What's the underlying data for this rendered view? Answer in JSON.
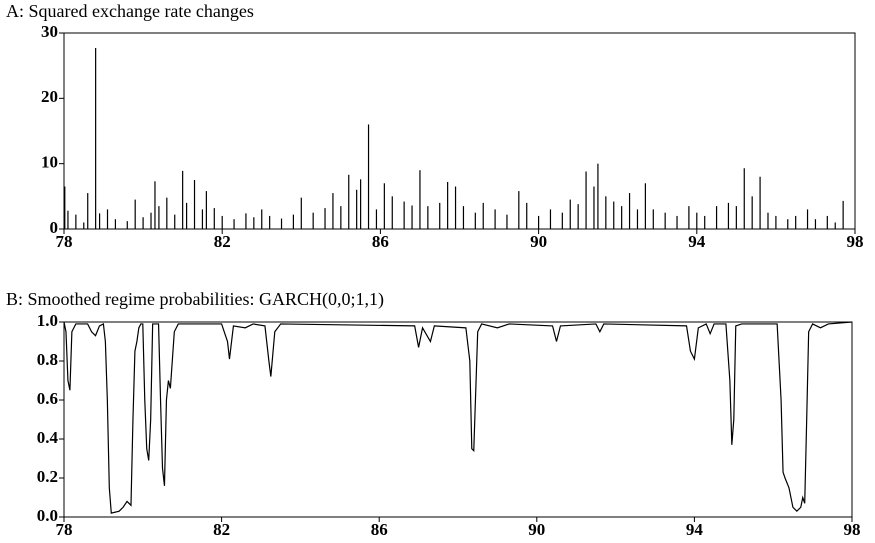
{
  "chart_data": [
    {
      "type": "spike",
      "title": "A: Squared exchange rate changes",
      "color": "#000000",
      "x": [
        78.02,
        78.1,
        78.3,
        78.5,
        78.6,
        78.8,
        78.9,
        79.1,
        79.3,
        79.6,
        79.8,
        80.0,
        80.2,
        80.3,
        80.4,
        80.6,
        80.8,
        81.0,
        81.1,
        81.3,
        81.5,
        81.6,
        81.8,
        82.0,
        82.3,
        82.6,
        82.8,
        83.0,
        83.2,
        83.5,
        83.8,
        84.0,
        84.3,
        84.6,
        84.8,
        85.0,
        85.2,
        85.4,
        85.5,
        85.7,
        85.9,
        86.1,
        86.3,
        86.6,
        86.8,
        87.0,
        87.2,
        87.5,
        87.7,
        87.9,
        88.1,
        88.4,
        88.6,
        88.9,
        89.2,
        89.5,
        89.7,
        90.0,
        90.3,
        90.6,
        90.8,
        91.0,
        91.2,
        91.4,
        91.5,
        91.7,
        91.9,
        92.1,
        92.3,
        92.5,
        92.7,
        92.9,
        93.2,
        93.5,
        93.8,
        94.0,
        94.2,
        94.5,
        94.8,
        95.0,
        95.2,
        95.4,
        95.6,
        95.8,
        96.0,
        96.3,
        96.5,
        96.8,
        97.0,
        97.3,
        97.5,
        97.7
      ],
      "y": [
        6.5,
        2.8,
        2.2,
        1.0,
        5.5,
        27.7,
        2.4,
        3.0,
        1.5,
        1.2,
        4.5,
        1.8,
        2.5,
        7.3,
        3.5,
        4.8,
        2.2,
        8.9,
        4.0,
        7.5,
        3.0,
        5.8,
        3.2,
        2.0,
        1.5,
        2.4,
        1.8,
        3.0,
        2.0,
        1.6,
        2.2,
        4.8,
        2.5,
        3.2,
        5.5,
        3.5,
        8.3,
        6.0,
        7.6,
        16.0,
        3.0,
        7.0,
        5.0,
        4.2,
        3.6,
        9.0,
        3.5,
        4.0,
        7.2,
        6.5,
        3.5,
        2.5,
        4.0,
        3.0,
        2.2,
        5.8,
        4.0,
        2.0,
        3.0,
        2.5,
        4.5,
        3.8,
        8.8,
        6.5,
        10.0,
        5.0,
        4.2,
        3.5,
        5.5,
        3.0,
        7.0,
        3.0,
        2.5,
        2.0,
        3.5,
        2.5,
        2.0,
        3.5,
        4.0,
        3.5,
        9.3,
        5.0,
        8.0,
        2.5,
        2.0,
        1.5,
        2.0,
        3.0,
        1.5,
        2.0,
        1.0,
        4.3
      ],
      "xlim": [
        78,
        98
      ],
      "xticks": [
        78,
        82,
        86,
        90,
        94,
        98
      ],
      "ylim": [
        0,
        30
      ],
      "yticks": [
        0,
        10,
        20,
        30
      ]
    },
    {
      "type": "line",
      "title": "B: Smoothed regime probabilities: GARCH(0,0;1,1)",
      "color": "#000000",
      "x": [
        78.0,
        78.05,
        78.1,
        78.15,
        78.2,
        78.3,
        78.6,
        78.7,
        78.8,
        78.9,
        79.0,
        79.05,
        79.1,
        79.15,
        79.2,
        79.4,
        79.5,
        79.6,
        79.7,
        79.75,
        79.8,
        79.85,
        79.9,
        79.95,
        80.0,
        80.05,
        80.1,
        80.15,
        80.2,
        80.25,
        80.4,
        80.45,
        80.5,
        80.55,
        80.6,
        80.65,
        80.7,
        80.8,
        80.9,
        82.0,
        82.15,
        82.2,
        82.3,
        82.6,
        82.8,
        83.1,
        83.2,
        83.25,
        83.35,
        83.5,
        86.9,
        87.0,
        87.1,
        87.3,
        87.4,
        88.2,
        88.3,
        88.35,
        88.4,
        88.5,
        88.6,
        89.0,
        89.3,
        90.4,
        90.5,
        90.6,
        91.5,
        91.6,
        91.7,
        93.8,
        93.9,
        94.0,
        94.1,
        94.3,
        94.4,
        94.5,
        94.8,
        94.9,
        94.95,
        95.0,
        95.05,
        95.2,
        96.1,
        96.2,
        96.25,
        96.3,
        96.4,
        96.5,
        96.6,
        96.7,
        96.75,
        96.8,
        96.85,
        96.9,
        97.0,
        97.2,
        97.4,
        98.0
      ],
      "y": [
        1.0,
        0.95,
        0.7,
        0.65,
        0.95,
        0.99,
        0.99,
        0.95,
        0.93,
        0.98,
        0.99,
        0.9,
        0.6,
        0.15,
        0.02,
        0.03,
        0.05,
        0.08,
        0.06,
        0.5,
        0.85,
        0.9,
        0.97,
        0.99,
        0.99,
        0.6,
        0.35,
        0.29,
        0.5,
        0.99,
        0.99,
        0.6,
        0.25,
        0.16,
        0.6,
        0.7,
        0.66,
        0.95,
        0.99,
        0.99,
        0.9,
        0.81,
        0.98,
        0.97,
        0.99,
        0.98,
        0.8,
        0.72,
        0.95,
        0.99,
        0.98,
        0.87,
        0.97,
        0.9,
        0.98,
        0.97,
        0.8,
        0.35,
        0.34,
        0.95,
        0.99,
        0.97,
        0.99,
        0.98,
        0.9,
        0.98,
        0.99,
        0.95,
        0.99,
        0.98,
        0.85,
        0.81,
        0.97,
        0.99,
        0.94,
        0.99,
        0.99,
        0.7,
        0.37,
        0.5,
        0.98,
        0.99,
        0.99,
        0.6,
        0.23,
        0.2,
        0.15,
        0.05,
        0.03,
        0.05,
        0.1,
        0.07,
        0.5,
        0.95,
        0.99,
        0.97,
        0.99,
        1.0
      ],
      "xlim": [
        78,
        98
      ],
      "xticks": [
        78,
        82,
        86,
        90,
        94,
        98
      ],
      "ylim": [
        0,
        1
      ],
      "yticks": [
        {
          "value": 0,
          "label": "0.0"
        },
        0.2,
        0.4,
        0.6,
        0.8,
        {
          "value": 1,
          "label": "1.0"
        }
      ]
    }
  ]
}
